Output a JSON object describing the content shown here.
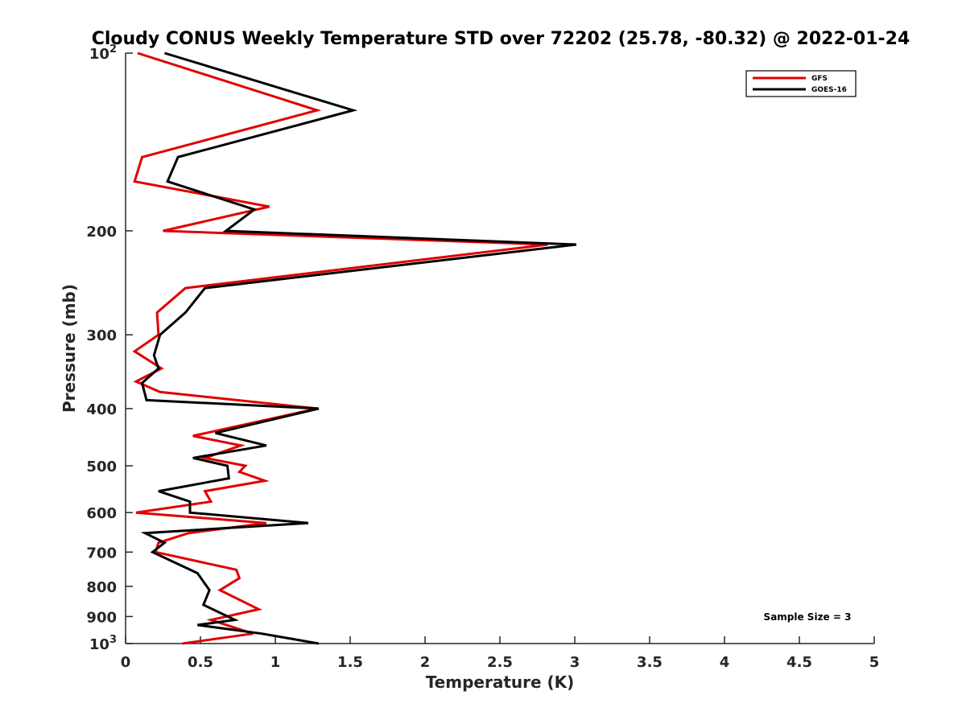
{
  "chart_data": {
    "type": "line",
    "title": "Cloudy CONUS Weekly Temperature STD over 72202 (25.78, -80.32) @ 2022-01-24",
    "xlabel": "Temperature (K)",
    "ylabel": "Pressure (mb)",
    "xlim": [
      0,
      5
    ],
    "ylim": [
      100,
      1000
    ],
    "yscale": "log",
    "yaxis_reversed": true,
    "grid": false,
    "legend_position": "top-right",
    "xticks": [
      0,
      0.5,
      1,
      1.5,
      2,
      2.5,
      3,
      3.5,
      4,
      4.5,
      5
    ],
    "xtick_labels": [
      "0",
      "0.5",
      "1",
      "1.5",
      "2",
      "2.5",
      "3",
      "3.5",
      "4",
      "4.5",
      "5"
    ],
    "yticks": [
      100,
      200,
      300,
      400,
      500,
      600,
      700,
      800,
      900,
      1000
    ],
    "ytick_labels": [
      {
        "base": "10",
        "sup": "2"
      },
      {
        "base": "200",
        "sup": ""
      },
      {
        "base": "300",
        "sup": ""
      },
      {
        "base": "400",
        "sup": ""
      },
      {
        "base": "500",
        "sup": ""
      },
      {
        "base": "600",
        "sup": ""
      },
      {
        "base": "700",
        "sup": ""
      },
      {
        "base": "800",
        "sup": ""
      },
      {
        "base": "900",
        "sup": ""
      },
      {
        "base": "10",
        "sup": "3"
      }
    ],
    "series": [
      {
        "name": "GFS",
        "color": "#e00000",
        "points": [
          [
            0.08,
            100
          ],
          [
            1.28,
            125
          ],
          [
            0.11,
            150
          ],
          [
            0.06,
            165
          ],
          [
            0.96,
            182
          ],
          [
            0.25,
            200
          ],
          [
            2.82,
            211
          ],
          [
            0.4,
            250
          ],
          [
            0.21,
            275
          ],
          [
            0.22,
            300
          ],
          [
            0.06,
            320
          ],
          [
            0.24,
            342
          ],
          [
            0.07,
            360
          ],
          [
            0.23,
            375
          ],
          [
            1.28,
            400
          ],
          [
            0.45,
            445
          ],
          [
            0.77,
            462
          ],
          [
            0.53,
            485
          ],
          [
            0.8,
            500
          ],
          [
            0.76,
            512
          ],
          [
            0.93,
            530
          ],
          [
            0.53,
            552
          ],
          [
            0.57,
            575
          ],
          [
            0.07,
            600
          ],
          [
            0.94,
            625
          ],
          [
            0.42,
            650
          ],
          [
            0.22,
            675
          ],
          [
            0.2,
            700
          ],
          [
            0.74,
            750
          ],
          [
            0.76,
            775
          ],
          [
            0.63,
            812
          ],
          [
            0.89,
            875
          ],
          [
            0.57,
            912
          ],
          [
            0.85,
            962
          ],
          [
            0.38,
            1000
          ]
        ]
      },
      {
        "name": "GOES-16",
        "color": "#000000",
        "points": [
          [
            0.26,
            100
          ],
          [
            1.52,
            125
          ],
          [
            0.35,
            150
          ],
          [
            0.28,
            165
          ],
          [
            0.86,
            184
          ],
          [
            0.67,
            200
          ],
          [
            3.01,
            211
          ],
          [
            0.53,
            250
          ],
          [
            0.4,
            275
          ],
          [
            0.23,
            300
          ],
          [
            0.19,
            325
          ],
          [
            0.22,
            342
          ],
          [
            0.11,
            362
          ],
          [
            0.14,
            387
          ],
          [
            1.29,
            400
          ],
          [
            0.6,
            440
          ],
          [
            0.94,
            462
          ],
          [
            0.45,
            485
          ],
          [
            0.68,
            500
          ],
          [
            0.69,
            525
          ],
          [
            0.22,
            552
          ],
          [
            0.43,
            575
          ],
          [
            0.43,
            600
          ],
          [
            1.22,
            625
          ],
          [
            0.13,
            650
          ],
          [
            0.26,
            675
          ],
          [
            0.18,
            700
          ],
          [
            0.48,
            760
          ],
          [
            0.56,
            812
          ],
          [
            0.52,
            860
          ],
          [
            0.73,
            912
          ],
          [
            0.48,
            930
          ],
          [
            0.91,
            962
          ],
          [
            1.29,
            1000
          ]
        ]
      }
    ],
    "annotation": "Sample Size = 3"
  }
}
